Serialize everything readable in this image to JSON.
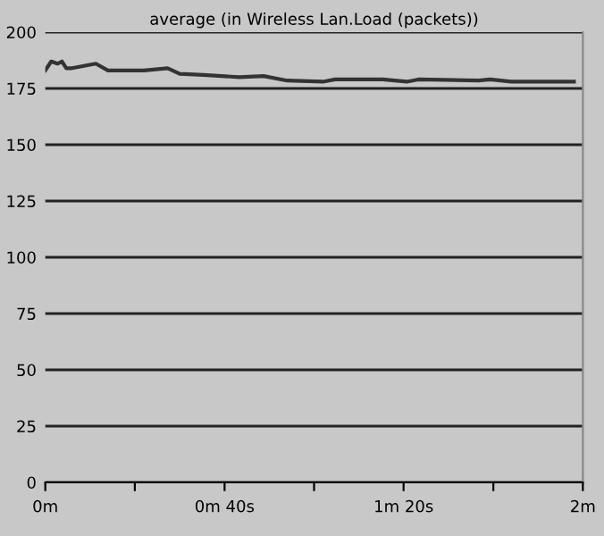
{
  "chart_data": {
    "type": "line",
    "title": "average (in Wireless Lan.Load (packets))",
    "x": [
      0,
      0.022,
      0.045,
      0.062,
      0.078,
      0.1,
      0.188,
      0.233,
      0.367,
      0.455,
      0.5,
      0.588,
      0.722,
      0.812,
      0.9,
      1.033,
      1.078,
      1.255,
      1.345,
      1.388,
      1.612,
      1.655,
      1.733,
      1.967
    ],
    "series": [
      {
        "color": "#333333",
        "values": [
          183,
          187,
          186,
          187,
          184,
          184,
          186,
          183,
          183,
          184,
          181.5,
          181,
          180,
          180.5,
          178.5,
          178,
          179,
          179,
          178,
          179,
          178.5,
          179,
          178,
          178
        ]
      }
    ],
    "xlim": [
      0,
      2
    ],
    "xticks": [
      {
        "value": 0,
        "label": "0m"
      },
      {
        "value": 0.333,
        "label": null
      },
      {
        "value": 0.667,
        "label": "0m 40s"
      },
      {
        "value": 1,
        "label": null
      },
      {
        "value": 1.333,
        "label": "1m 20s"
      },
      {
        "value": 1.667,
        "label": null
      },
      {
        "value": 2,
        "label": "2m"
      }
    ],
    "ylim": [
      0,
      200
    ],
    "yticks": [
      0,
      25,
      50,
      75,
      100,
      125,
      150,
      175,
      200
    ],
    "grid": "y",
    "legend": false
  }
}
